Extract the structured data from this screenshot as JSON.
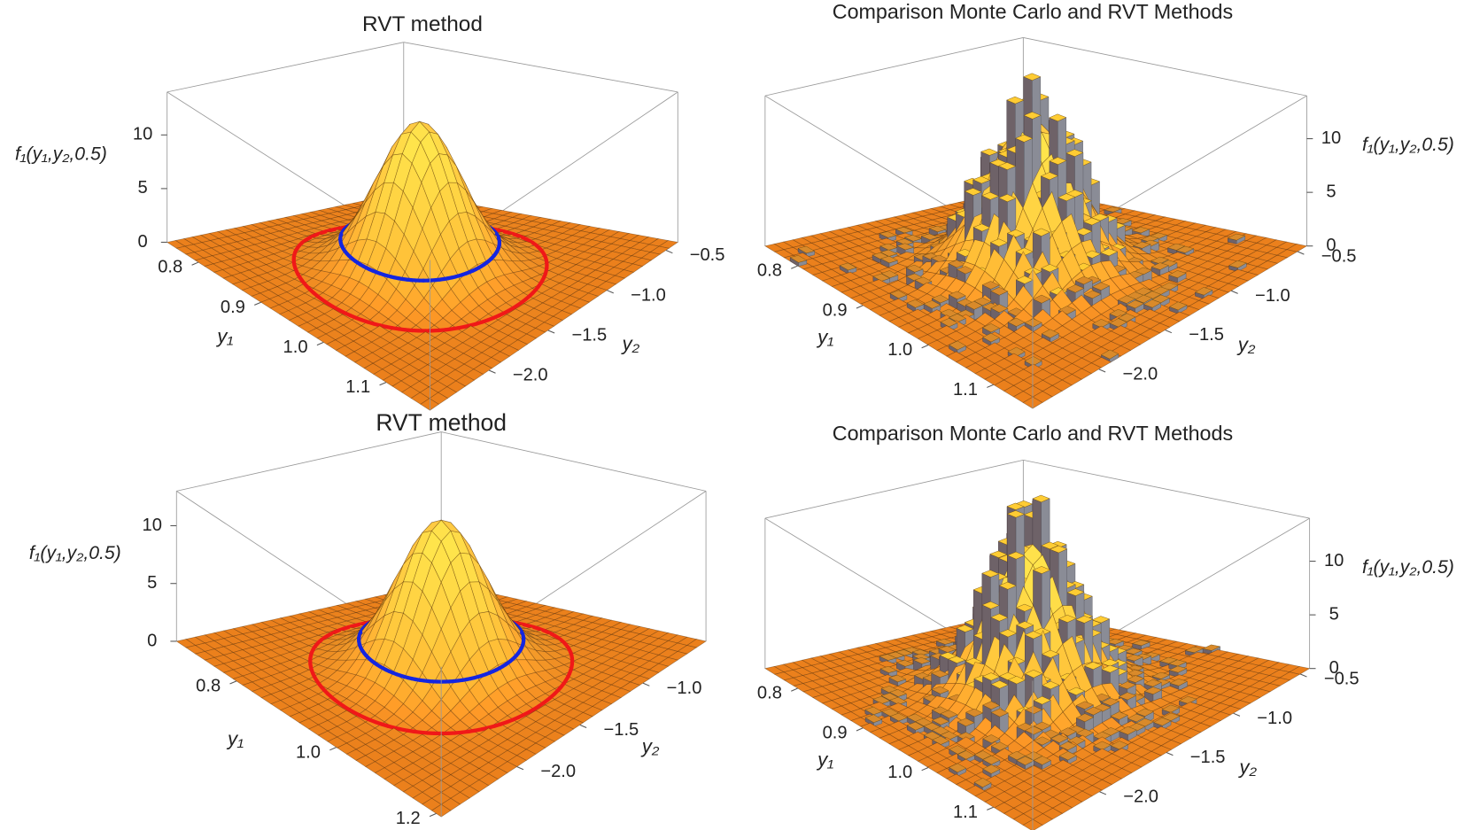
{
  "chart_data": [
    {
      "type": "surface",
      "title": "RVT method",
      "xlabel": "y₁",
      "ylabel": "y₂",
      "zlabel": "f₁(y₁,y₂,0.5)",
      "xlim": [
        0.75,
        1.17
      ],
      "xticks": [
        0.8,
        0.9,
        {
          "value": 1,
          "label": "1.0"
        },
        1.1
      ],
      "ylim": [
        -2.5,
        -0.4
      ],
      "yticks": [
        {
          "value": -2,
          "label": "−2.0"
        },
        {
          "value": -1.5,
          "label": "−1.5"
        },
        {
          "value": -1,
          "label": "−1.0"
        },
        {
          "value": -0.5,
          "label": "−0.5"
        }
      ],
      "zlim": [
        0,
        14
      ],
      "zticks": [
        0,
        5,
        10
      ]
    },
    {
      "type": "histogram3d",
      "title": "Comparison Monte Carlo and RVT Methods",
      "xlabel": "y₁",
      "ylabel": "y₂",
      "zlabel": "f₁(y₁,y₂,0.5)",
      "xlim": [
        0.75,
        1.16
      ],
      "xticks": [
        0.8,
        0.9,
        {
          "value": 1,
          "label": "1.0"
        },
        1.1
      ],
      "ylim": [
        -2.5,
        -0.43
      ],
      "yticks": [
        {
          "value": -2,
          "label": "−2.0"
        },
        {
          "value": -1.5,
          "label": "−1.5"
        },
        {
          "value": -1,
          "label": "−1.0"
        },
        {
          "value": -0.5,
          "label": "−0.5"
        }
      ],
      "zlim": [
        0,
        14
      ],
      "zticks": [
        0,
        5,
        10
      ]
    },
    {
      "type": "surface",
      "title": "RVT method",
      "xlabel": "y₁",
      "ylabel": "y₂",
      "zlabel": "f₁(y₁,y₂,0.5)",
      "xlim": [
        0.68,
        1.21
      ],
      "xticks": [
        0.8,
        {
          "value": 1,
          "label": "1.0"
        },
        1.2
      ],
      "ylim": [
        -2.6,
        -0.5
      ],
      "yticks": [
        {
          "value": -2,
          "label": "−2.0"
        },
        {
          "value": -1.5,
          "label": "−1.5"
        },
        {
          "value": -1,
          "label": "−1.0"
        }
      ],
      "zlim": [
        0,
        13
      ],
      "zticks": [
        0,
        5,
        10
      ]
    },
    {
      "type": "histogram3d",
      "title": "Comparison Monte Carlo and RVT Methods",
      "xlabel": "y₁",
      "ylabel": "y₂",
      "zlabel": "f₁(y₁,y₂,0.5)",
      "xlim": [
        0.75,
        1.16
      ],
      "xticks": [
        0.8,
        0.9,
        {
          "value": 1,
          "label": "1.0"
        },
        1.1
      ],
      "ylim": [
        -2.5,
        -0.43
      ],
      "yticks": [
        {
          "value": -2,
          "label": "−2.0"
        },
        {
          "value": -1.5,
          "label": "−1.5"
        },
        {
          "value": -1,
          "label": "−1.0"
        },
        {
          "value": -0.5,
          "label": "−0.5"
        }
      ],
      "zlim": [
        0,
        14
      ],
      "zticks": [
        0,
        5,
        10
      ]
    }
  ]
}
